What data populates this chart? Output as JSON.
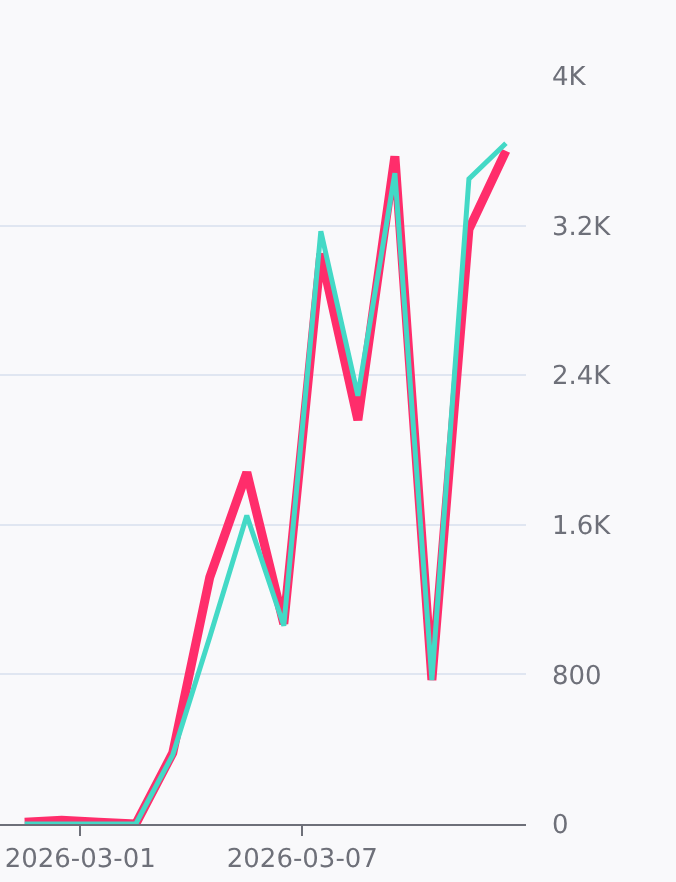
{
  "chart_data": {
    "type": "line",
    "x": [
      "2026-02-27T12:00",
      "2026-02-28T12:00",
      "2026-03-01T12:00",
      "2026-03-02T12:00",
      "2026-03-03T12:00",
      "2026-03-04T12:00",
      "2026-03-05T12:00",
      "2026-03-06T12:00",
      "2026-03-07T12:00",
      "2026-03-08T12:00",
      "2026-03-09T12:00",
      "2026-03-10T12:00",
      "2026-03-11T12:00",
      "2026-03-12T12:00"
    ],
    "series": [
      {
        "color": "#ff2d6b",
        "values": [
          10,
          20,
          10,
          0,
          380,
          1320,
          1880,
          1070,
          3050,
          2160,
          3570,
          770,
          3180,
          3600
        ]
      },
      {
        "color": "#43d9c6",
        "values": [
          0,
          0,
          0,
          0,
          370,
          1000,
          1650,
          1060,
          3170,
          2290,
          3480,
          770,
          3450,
          3640
        ]
      }
    ],
    "xlim": [
      "2026-02-26T20:00",
      "2026-03-13T01:00"
    ],
    "xticks": [
      {
        "value": "2026-03-01",
        "label": "2026-03-01"
      },
      {
        "value": "2026-03-07",
        "label": "2026-03-07"
      }
    ],
    "ylim": [
      0,
      4000
    ],
    "yticks": [
      0,
      {
        "value": 800,
        "label": "800"
      },
      {
        "value": 1600,
        "label": "1.6K"
      },
      {
        "value": 2400,
        "label": "2.4K"
      },
      {
        "value": 3200,
        "label": "3.2K"
      },
      {
        "value": 4000,
        "label": "4K"
      }
    ],
    "grid": "y",
    "legend": false
  }
}
